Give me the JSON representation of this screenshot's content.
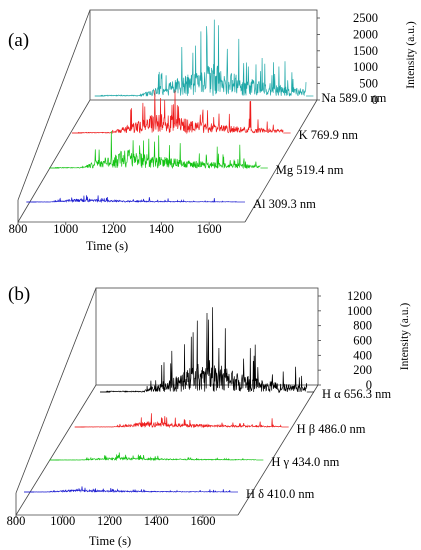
{
  "chart_data": [
    {
      "panel_label": "(a)",
      "type": "line",
      "view": "3d-waterfall",
      "xlabel": "Time (s)",
      "ylabel": "Intensity (a.u.)",
      "x_ticks": [
        "800",
        "1000",
        "1200",
        "1400",
        "1600"
      ],
      "xlim": [
        800,
        1750
      ],
      "y_ticks": [
        "2500",
        "2000",
        "1500",
        "1000",
        "500",
        "0"
      ],
      "ylim": [
        0,
        2500
      ],
      "series": [
        {
          "name": "Na 589.0 nm",
          "color": "#1fa8a8",
          "start": 1010,
          "peak": 1330,
          "max": 2500,
          "decay": 260
        },
        {
          "name": "K 769.9 nm",
          "color": "#ee1c1c",
          "start": 990,
          "peak": 1200,
          "max": 1650,
          "decay": 280
        },
        {
          "name": "Mg 519.4 nm",
          "color": "#13c313",
          "start": 960,
          "peak": 1150,
          "max": 1500,
          "decay": 300
        },
        {
          "name": "Al 309.3 nm",
          "color": "#1a1ad0",
          "start": 930,
          "peak": 1050,
          "max": 260,
          "decay": 250
        }
      ]
    },
    {
      "panel_label": "(b)",
      "type": "line",
      "view": "3d-waterfall",
      "xlabel": "Time (s)",
      "ylabel": "Intensity (a.u.)",
      "x_ticks": [
        "800",
        "1000",
        "1200",
        "1400",
        "1600"
      ],
      "xlim": [
        800,
        1750
      ],
      "y_ticks": [
        "1200",
        "1000",
        "800",
        "600",
        "400",
        "200",
        "0"
      ],
      "ylim": [
        0,
        1200
      ],
      "series": [
        {
          "name": "H α 656.3 nm",
          "color": "#000000",
          "start": 1010,
          "peak": 1300,
          "max": 1200,
          "decay": 230
        },
        {
          "name": "H β 486.0 nm",
          "color": "#ee1c1c",
          "start": 990,
          "peak": 1150,
          "max": 200,
          "decay": 300
        },
        {
          "name": "H γ 434.0 nm",
          "color": "#13c313",
          "start": 960,
          "peak": 1100,
          "max": 110,
          "decay": 300
        },
        {
          "name": "H δ 410.0 nm",
          "color": "#1a1ad0",
          "start": 930,
          "peak": 1050,
          "max": 90,
          "decay": 300
        }
      ]
    }
  ]
}
